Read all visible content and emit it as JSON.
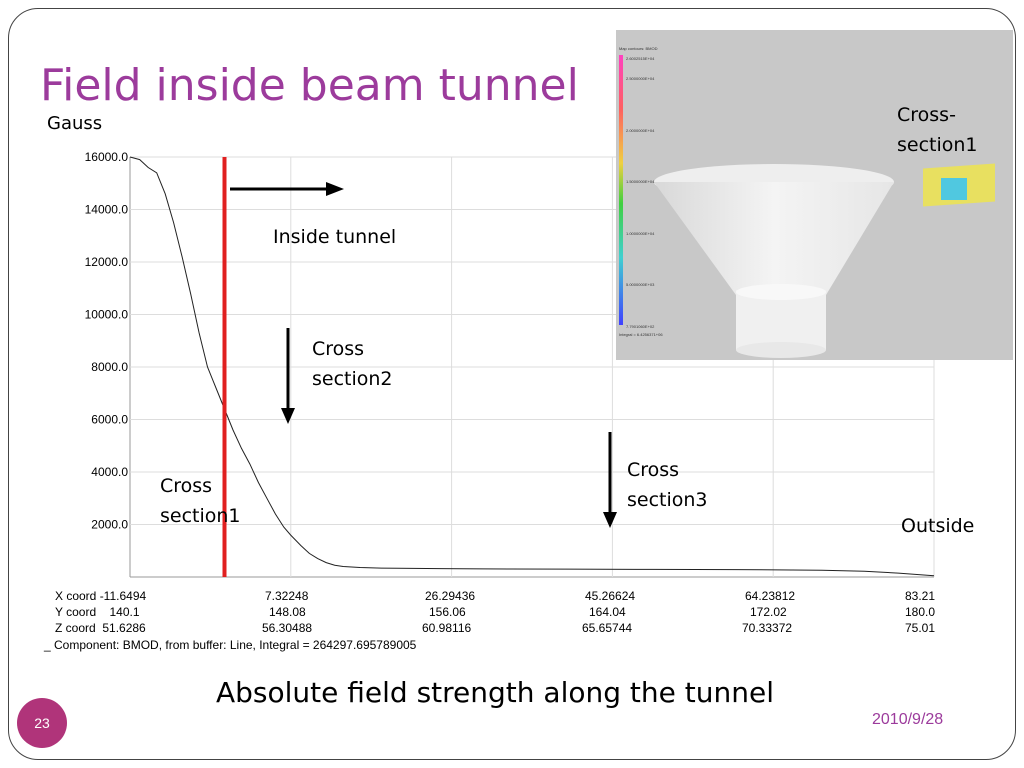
{
  "slide": {
    "title": "Field inside beam tunnel",
    "unit": "Gauss",
    "caption": "Absolute field strength along the tunnel",
    "page_number": "23",
    "date": "2010/9/28"
  },
  "annotations": {
    "inside_tunnel": "Inside tunnel",
    "cross_section1_a": "Cross",
    "cross_section1_b": "section1",
    "cross_section2_a": "Cross",
    "cross_section2_b": "section2",
    "cross_section3_a": "Cross",
    "cross_section3_b": "section3",
    "outside": "Outside",
    "inset_cross_a": "Cross-",
    "inset_cross_b": "section1"
  },
  "coords": {
    "x_row": [
      "X coord -11.6494",
      "7.32248",
      "26.29436",
      "45.26624",
      "64.23812",
      "83.21"
    ],
    "y_row": [
      "Y coord    140.1",
      "148.08",
      "156.06",
      "164.04",
      "172.02",
      "180.0"
    ],
    "z_row": [
      "Z coord  51.6286",
      "56.30488",
      "60.98116",
      "65.65744",
      "70.33372",
      "75.01"
    ],
    "component": "_ Component: BMOD, from buffer: Line, Integral = 264297.695789005"
  },
  "inset": {
    "legend_title": "Map contours: BMOD",
    "legend_values": [
      "2.6002515E+04",
      "2.5000000E+04",
      "2.0000000E+04",
      "1.5000000E+04",
      "1.0000000E+04",
      "5.0000000E+03",
      "7.7901060E+02"
    ],
    "integral": "Integral = 6.4256371+06"
  },
  "chart_data": {
    "type": "line",
    "title": "",
    "xlabel": "",
    "ylabel": "Gauss",
    "xlim": [
      -11.6494,
      83.21
    ],
    "ylim": [
      0,
      16000
    ],
    "yticks": [
      "16000.0",
      "14000.0",
      "12000.0",
      "10000.0",
      "8000.0",
      "6000.0",
      "4000.0",
      "2000.0"
    ],
    "grid": true,
    "series": [
      {
        "x": [
          -11.65,
          -10.5,
          -9.5,
          -8.5,
          -7.5,
          -6.5,
          -5.5,
          -4.5,
          -3.5,
          -2.5,
          -1.5,
          -0.5,
          0.5,
          1.5,
          2.5,
          3.5,
          4.5,
          5.5,
          6.5,
          7.3,
          8.5,
          9.5,
          10.5,
          11.5,
          12.5,
          13.5,
          14.5,
          15.5,
          16.5,
          18.0,
          20.0,
          25.0,
          30.0,
          40.0,
          50.0,
          60.0,
          70.0,
          75.0,
          79.0,
          83.21
        ],
        "y": [
          16000,
          15900,
          15600,
          15400,
          14600,
          13500,
          12200,
          10800,
          9300,
          8000,
          7200,
          6400,
          5600,
          4900,
          4300,
          3600,
          3000,
          2400,
          1900,
          1600,
          1200,
          900,
          700,
          550,
          450,
          400,
          380,
          360,
          350,
          340,
          330,
          320,
          310,
          300,
          290,
          280,
          260,
          220,
          150,
          50
        ]
      }
    ],
    "markers": [
      {
        "x": -0.5,
        "color": "#e02020"
      }
    ]
  }
}
